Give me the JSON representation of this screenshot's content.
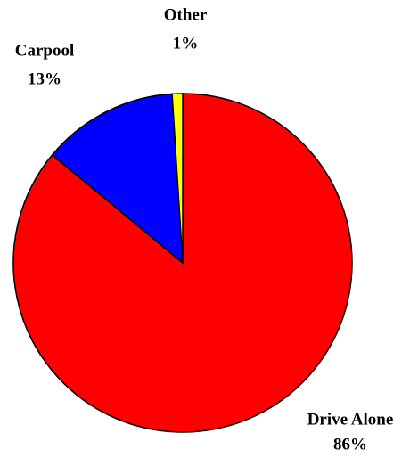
{
  "chart_data": {
    "type": "pie",
    "categories": [
      "Drive Alone",
      "Carpool",
      "Other"
    ],
    "values": [
      86,
      13,
      1
    ],
    "value_labels": [
      "86%",
      "13%",
      "1%"
    ],
    "colors": [
      "#ff0000",
      "#0000ff",
      "#ffff00"
    ]
  }
}
